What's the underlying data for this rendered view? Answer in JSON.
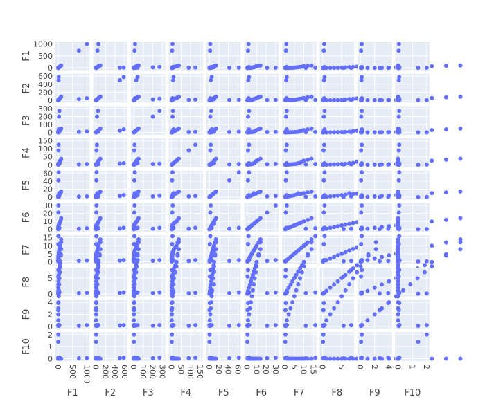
{
  "chart_data": {
    "type": "scatter",
    "kind": "scatter-matrix",
    "dimensions": [
      {
        "label": "F1",
        "ticks": [
          0,
          500,
          1000
        ],
        "range": [
          0,
          1000
        ]
      },
      {
        "label": "F2",
        "ticks": [
          0,
          200,
          400,
          600
        ],
        "range": [
          0,
          600
        ]
      },
      {
        "label": "F3",
        "ticks": [
          0,
          100,
          200,
          300
        ],
        "range": [
          0,
          300
        ]
      },
      {
        "label": "F4",
        "ticks": [
          0,
          50,
          100,
          150
        ],
        "range": [
          0,
          150
        ]
      },
      {
        "label": "F5",
        "ticks": [
          0,
          20,
          40,
          60
        ],
        "range": [
          0,
          60
        ]
      },
      {
        "label": "F6",
        "ticks": [
          0,
          10,
          20,
          30
        ],
        "range": [
          0,
          30
        ]
      },
      {
        "label": "F7",
        "ticks": [
          0,
          5,
          10,
          15
        ],
        "range": [
          0,
          15
        ]
      },
      {
        "label": "F8",
        "ticks": [
          0,
          5
        ],
        "range": [
          0,
          7.5
        ]
      },
      {
        "label": "F9",
        "ticks": [
          0,
          2,
          4
        ],
        "range": [
          0,
          4
        ]
      },
      {
        "label": "F10",
        "ticks": [
          0,
          1,
          2
        ],
        "range": [
          0,
          2
        ]
      }
    ],
    "samples": [
      [
        1,
        1,
        1,
        1,
        1,
        1,
        1,
        1,
        1,
        0
      ],
      [
        2,
        2,
        2,
        2,
        2,
        2,
        2,
        2,
        2,
        0
      ],
      [
        4,
        3,
        3,
        3,
        3,
        3,
        3,
        3,
        3,
        0
      ],
      [
        7,
        4,
        4,
        4,
        4,
        4,
        4,
        4,
        4,
        0
      ],
      [
        14,
        5,
        5,
        5,
        5,
        5,
        5,
        5,
        5,
        0
      ],
      [
        20,
        16,
        6,
        6,
        6,
        6,
        6,
        6,
        6,
        0
      ],
      [
        32,
        28,
        10,
        10,
        10,
        7,
        7,
        7,
        7,
        0
      ],
      [
        40,
        36,
        18,
        12,
        8,
        8,
        8,
        8,
        8,
        0
      ],
      [
        55,
        45,
        24,
        20,
        9,
        9,
        9,
        9,
        9,
        0
      ],
      [
        70,
        55,
        30,
        26,
        10,
        10,
        10,
        10,
        10,
        0
      ],
      [
        90,
        75,
        40,
        32,
        12,
        12,
        12,
        12,
        12,
        0
      ],
      [
        100,
        90,
        50,
        38,
        14,
        14,
        14,
        14,
        14,
        0
      ],
      [
        720,
        30,
        8,
        3,
        1.5,
        1,
        0.6,
        0.3,
        0.1,
        0.04
      ],
      [
        1000,
        50,
        13,
        5,
        2,
        1.5,
        0.8,
        0.4,
        0.2,
        0.06
      ],
      [
        10,
        500,
        25,
        8,
        3,
        1.2,
        0.7,
        0.35,
        0.15,
        0.05
      ],
      [
        15,
        580,
        40,
        10,
        5,
        2,
        1,
        0.5,
        0.2,
        0.08
      ],
      [
        25,
        20,
        200,
        5,
        2,
        1,
        0.6,
        0.3,
        0.12,
        0.05
      ],
      [
        40,
        40,
        270,
        7,
        4,
        2,
        1,
        0.5,
        0.2,
        0.08
      ],
      [
        8,
        10,
        5,
        90,
        2,
        1,
        0.5,
        0.25,
        0.1,
        0.05
      ],
      [
        12,
        18,
        8,
        125,
        3,
        2,
        1,
        0.4,
        0.2,
        0.08
      ],
      [
        6,
        8,
        6,
        3,
        42,
        1,
        0.5,
        0.3,
        0.1,
        0.05
      ],
      [
        10,
        12,
        10,
        5,
        62,
        2,
        1,
        0.5,
        0.2,
        0.08
      ],
      [
        4,
        6,
        5,
        4,
        2,
        21,
        0.5,
        0.3,
        0.1,
        0.05
      ],
      [
        6,
        10,
        8,
        6,
        3,
        30,
        1,
        0.5,
        0.2,
        0.08
      ],
      [
        3,
        5,
        4,
        3,
        1,
        1,
        11,
        0.3,
        0.1,
        0.05
      ],
      [
        5,
        7,
        6,
        5,
        2,
        1.5,
        16,
        0.5,
        0.2,
        0.08
      ],
      [
        2,
        3,
        3,
        2,
        1,
        0.5,
        0.3,
        5.5,
        0.1,
        0.04
      ],
      [
        3,
        5,
        4,
        3,
        2,
        1,
        0.5,
        7.5,
        0.2,
        0.08
      ],
      [
        1,
        2,
        2,
        1,
        0.5,
        0.5,
        0.3,
        0.2,
        2.7,
        0.05
      ],
      [
        2,
        3,
        3,
        2,
        1,
        1,
        0.5,
        0.3,
        3.9,
        0.08
      ],
      [
        1,
        1,
        1,
        1,
        0.3,
        0.3,
        0.2,
        0.1,
        0.1,
        1.4
      ],
      [
        2,
        2,
        2,
        2,
        0.5,
        0.5,
        0.3,
        0.2,
        0.2,
        2.0
      ]
    ],
    "marker_color": "#636efa",
    "panel_bg": "#e5ecf6",
    "grid_color": "#ffffff"
  }
}
